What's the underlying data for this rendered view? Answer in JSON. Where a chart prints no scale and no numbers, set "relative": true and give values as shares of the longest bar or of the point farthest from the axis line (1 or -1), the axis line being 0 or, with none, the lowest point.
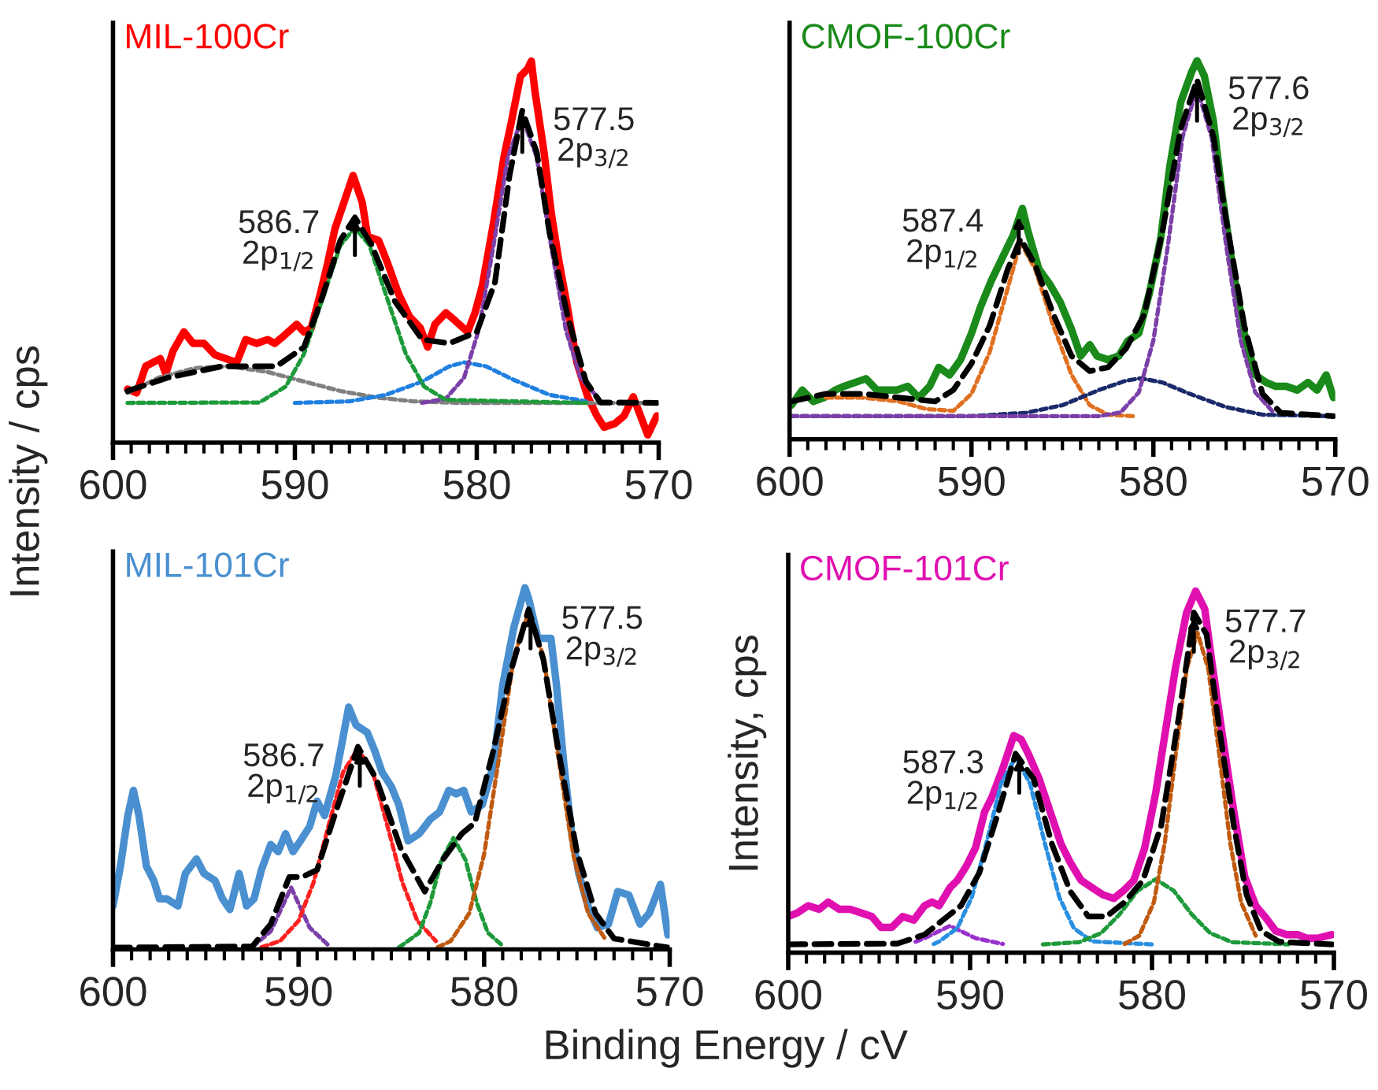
{
  "chart_data": [
    {
      "type": "line",
      "title": "MIL-100Cr",
      "ylabel": "Intensity / cps",
      "relative": true,
      "xlim": [
        600,
        570
      ],
      "xticks": [
        600,
        {
          "value": 599,
          "label": null
        },
        {
          "value": 598,
          "label": null
        },
        {
          "value": 597,
          "label": null
        },
        {
          "value": 596,
          "label": null
        },
        {
          "value": 595,
          "label": null
        },
        {
          "value": 594,
          "label": null
        },
        {
          "value": 593,
          "label": null
        },
        {
          "value": 592,
          "label": null
        },
        {
          "value": 591,
          "label": null
        },
        590,
        {
          "value": 589,
          "label": null
        },
        {
          "value": 588,
          "label": null
        },
        {
          "value": 587,
          "label": null
        },
        {
          "value": 586,
          "label": null
        },
        {
          "value": 585,
          "label": null
        },
        {
          "value": 584,
          "label": null
        },
        {
          "value": 583,
          "label": null
        },
        {
          "value": 582,
          "label": null
        },
        {
          "value": 581,
          "label": null
        },
        580,
        {
          "value": 579,
          "label": null
        },
        {
          "value": 578,
          "label": null
        },
        {
          "value": 577,
          "label": null
        },
        {
          "value": 576,
          "label": null
        },
        {
          "value": 575,
          "label": null
        },
        {
          "value": 574,
          "label": null
        },
        {
          "value": 573,
          "label": null
        },
        {
          "value": 572,
          "label": null
        },
        {
          "value": 571,
          "label": null
        },
        570
      ],
      "annotations": [
        {
          "text": "586.7\n2p$_{1/2}$",
          "x": 586.7,
          "y": 0.6
        },
        {
          "text": "577.5\n2p$_{3/2}$",
          "x": 577.5,
          "y": 0.87
        }
      ],
      "series": [
        {
          "color": "#ff0000",
          "line_style": "solid",
          "x": [
            599.2,
            598.7,
            598.2,
            597.4,
            597.1,
            596.7,
            596.1,
            595.6,
            595.0,
            594.4,
            593.8,
            593.2,
            592.7,
            592.1,
            591.5,
            591.1,
            590.6,
            589.9,
            589.5,
            589.1,
            588.6,
            588.2,
            587.8,
            587.3,
            586.8,
            586.3,
            586.0,
            585.4,
            584.9,
            584.3,
            583.7,
            583.1,
            582.7,
            582.3,
            581.7,
            581.2,
            580.5,
            580.1,
            579.7,
            579.1,
            578.5,
            578.1,
            577.6,
            577.2,
            577.0,
            576.8,
            576.3,
            575.9,
            575.5,
            575.0,
            574.5,
            573.9,
            573.4,
            573.0,
            572.4,
            571.9,
            571.4,
            571.0,
            570.6,
            570.1
          ],
          "values": [
            0.14,
            0.13,
            0.2,
            0.22,
            0.18,
            0.24,
            0.29,
            0.26,
            0.26,
            0.23,
            0.22,
            0.21,
            0.27,
            0.26,
            0.27,
            0.26,
            0.28,
            0.31,
            0.29,
            0.3,
            0.39,
            0.47,
            0.56,
            0.63,
            0.7,
            0.63,
            0.54,
            0.53,
            0.47,
            0.39,
            0.33,
            0.3,
            0.25,
            0.31,
            0.34,
            0.32,
            0.29,
            0.34,
            0.41,
            0.57,
            0.75,
            0.84,
            0.96,
            0.98,
            1.0,
            0.92,
            0.76,
            0.6,
            0.48,
            0.35,
            0.21,
            0.12,
            0.07,
            0.04,
            0.05,
            0.07,
            0.12,
            0.07,
            0.02,
            0.07
          ]
        },
        {
          "color": "#808080",
          "line_style": "dashed",
          "x": [
            599.2,
            597.5,
            595.5,
            593.7,
            591.5,
            589.5,
            587.5,
            585.5,
            583.5,
            581.0,
            570.1
          ],
          "values": [
            0.13,
            0.17,
            0.195,
            0.2,
            0.185,
            0.16,
            0.135,
            0.118,
            0.108,
            0.104,
            0.104
          ]
        },
        {
          "color": "#2080e0",
          "line_style": "dashed",
          "x": [
            590.0,
            587.0,
            585.0,
            583.0,
            581.5,
            580.7,
            579.5,
            578.0,
            576.0,
            574.0
          ],
          "values": [
            0.104,
            0.108,
            0.125,
            0.16,
            0.2,
            0.21,
            0.2,
            0.165,
            0.125,
            0.108
          ]
        },
        {
          "color": "#7b3fa8",
          "line_style": "dashed",
          "x": [
            583.0,
            581.7,
            580.7,
            579.9,
            579.1,
            578.3,
            577.5,
            576.7,
            575.9,
            575.1,
            574.3,
            573.3
          ],
          "values": [
            0.104,
            0.115,
            0.17,
            0.294,
            0.511,
            0.747,
            0.852,
            0.747,
            0.511,
            0.294,
            0.17,
            0.115
          ]
        },
        {
          "color": "#1e9a3a",
          "line_style": "dashed",
          "x": [
            599.2,
            592.0,
            591.7,
            590.5,
            589.5,
            588.5,
            587.5,
            586.7,
            585.9,
            584.9,
            583.9,
            582.9,
            581.7,
            574.0
          ],
          "values": [
            0.104,
            0.105,
            0.112,
            0.147,
            0.232,
            0.374,
            0.517,
            0.563,
            0.517,
            0.374,
            0.232,
            0.147,
            0.112,
            0.104
          ]
        },
        {
          "color": "#000000",
          "line_style": "dashed",
          "x": [
            599.2,
            597.0,
            594.0,
            591.0,
            589.5,
            588.5,
            587.5,
            586.7,
            585.8,
            584.5,
            583.0,
            581.5,
            580.0,
            579.0,
            578.2,
            577.5,
            576.7,
            576.0,
            575.0,
            574.0,
            573.2,
            570.1
          ],
          "values": [
            0.135,
            0.17,
            0.2,
            0.2,
            0.25,
            0.38,
            0.53,
            0.59,
            0.52,
            0.37,
            0.27,
            0.26,
            0.29,
            0.42,
            0.7,
            0.87,
            0.76,
            0.55,
            0.33,
            0.16,
            0.105,
            0.104
          ]
        }
      ]
    },
    {
      "type": "line",
      "title": "CMOF-100Cr",
      "relative": true,
      "xlim": [
        600,
        570
      ],
      "xticks": [
        600,
        {
          "value": 599,
          "label": null
        },
        {
          "value": 598,
          "label": null
        },
        {
          "value": 597,
          "label": null
        },
        {
          "value": 596,
          "label": null
        },
        {
          "value": 595,
          "label": null
        },
        {
          "value": 594,
          "label": null
        },
        {
          "value": 593,
          "label": null
        },
        {
          "value": 592,
          "label": null
        },
        {
          "value": 591,
          "label": null
        },
        590,
        {
          "value": 589,
          "label": null
        },
        {
          "value": 588,
          "label": null
        },
        {
          "value": 587,
          "label": null
        },
        {
          "value": 586,
          "label": null
        },
        {
          "value": 585,
          "label": null
        },
        {
          "value": 584,
          "label": null
        },
        {
          "value": 583,
          "label": null
        },
        {
          "value": 582,
          "label": null
        },
        {
          "value": 581,
          "label": null
        },
        580,
        {
          "value": 579,
          "label": null
        },
        {
          "value": 578,
          "label": null
        },
        {
          "value": 577,
          "label": null
        },
        {
          "value": 576,
          "label": null
        },
        {
          "value": 575,
          "label": null
        },
        {
          "value": 574,
          "label": null
        },
        {
          "value": 573,
          "label": null
        },
        {
          "value": 572,
          "label": null
        },
        {
          "value": 571,
          "label": null
        },
        570
      ],
      "annotations": [
        {
          "text": "587.4\n2p$_{1/2}$",
          "x": 587.4,
          "y": 0.6
        },
        {
          "text": "577.6\n2p$_{3/2}$",
          "x": 577.6,
          "y": 0.95
        }
      ],
      "series": [
        {
          "color": "#1a8a1a",
          "line_style": "solid",
          "x": [
            599.9,
            599.3,
            598.7,
            598.1,
            597.5,
            597.0,
            596.4,
            595.8,
            595.2,
            594.7,
            594.1,
            593.5,
            592.9,
            592.3,
            591.8,
            591.2,
            590.6,
            590.0,
            589.5,
            588.9,
            588.3,
            587.7,
            587.2,
            586.9,
            586.3,
            585.7,
            585.1,
            584.5,
            584.0,
            583.5,
            583.1,
            582.5,
            581.9,
            581.4,
            580.8,
            580.2,
            579.6,
            579.1,
            578.5,
            577.9,
            577.6,
            577.2,
            576.7,
            576.2,
            575.6,
            575.0,
            574.4,
            573.8,
            573.3,
            572.7,
            572.1,
            571.5,
            571.0,
            570.5,
            570.1
          ],
          "values": [
            0.09,
            0.13,
            0.1,
            0.11,
            0.13,
            0.14,
            0.15,
            0.16,
            0.13,
            0.13,
            0.13,
            0.14,
            0.11,
            0.14,
            0.19,
            0.17,
            0.21,
            0.28,
            0.35,
            0.42,
            0.48,
            0.54,
            0.61,
            0.55,
            0.45,
            0.41,
            0.36,
            0.29,
            0.22,
            0.25,
            0.22,
            0.21,
            0.22,
            0.26,
            0.28,
            0.39,
            0.53,
            0.72,
            0.89,
            0.97,
            1.0,
            0.96,
            0.84,
            0.64,
            0.44,
            0.28,
            0.17,
            0.15,
            0.14,
            0.14,
            0.13,
            0.15,
            0.13,
            0.17,
            0.11
          ]
        },
        {
          "color": "#e07020",
          "line_style": "dashed",
          "x": [
            598.0,
            596.0,
            594.0,
            592.5,
            591.0,
            590.0,
            589.0,
            588.0,
            587.3,
            586.5,
            585.5,
            584.5,
            583.5,
            582.5,
            581.0
          ],
          "values": [
            0.11,
            0.11,
            0.1,
            0.08,
            0.075,
            0.12,
            0.23,
            0.4,
            0.52,
            0.45,
            0.3,
            0.17,
            0.09,
            0.065,
            0.061
          ]
        },
        {
          "color": "#1a2a6a",
          "line_style": "dashed",
          "x": [
            599.9,
            590.0,
            587.0,
            585.0,
            583.0,
            581.5,
            580.7,
            579.5,
            578.0,
            576.0,
            574.0,
            570.1
          ],
          "values": [
            0.061,
            0.061,
            0.07,
            0.09,
            0.13,
            0.155,
            0.161,
            0.15,
            0.12,
            0.085,
            0.065,
            0.061
          ]
        },
        {
          "color": "#7b3fa8",
          "line_style": "dashed",
          "x": [
            599.9,
            583.0,
            581.8,
            580.8,
            580.0,
            579.2,
            578.4,
            577.6,
            576.8,
            576.0,
            575.2,
            574.4,
            573.4
          ],
          "values": [
            0.061,
            0.061,
            0.071,
            0.124,
            0.261,
            0.512,
            0.798,
            0.929,
            0.798,
            0.512,
            0.261,
            0.124,
            0.071
          ]
        },
        {
          "color": "#000000",
          "line_style": "dashed",
          "x": [
            599.9,
            598.0,
            596.0,
            594.0,
            592.0,
            591.0,
            590.0,
            589.0,
            588.0,
            587.3,
            586.5,
            585.5,
            584.5,
            583.5,
            582.5,
            581.5,
            580.5,
            579.5,
            578.5,
            577.6,
            576.7,
            576.0,
            575.0,
            574.0,
            573.0,
            570.1
          ],
          "values": [
            0.1,
            0.12,
            0.12,
            0.11,
            0.1,
            0.13,
            0.2,
            0.3,
            0.45,
            0.53,
            0.46,
            0.33,
            0.22,
            0.18,
            0.19,
            0.24,
            0.33,
            0.55,
            0.82,
            0.95,
            0.8,
            0.58,
            0.3,
            0.12,
            0.07,
            0.061
          ]
        }
      ]
    },
    {
      "type": "line",
      "title": "MIL-101Cr",
      "xlabel": "Binding Energy / cV",
      "relative": true,
      "xlim": [
        600,
        570
      ],
      "xticks": [
        600,
        {
          "value": 599,
          "label": null
        },
        {
          "value": 598,
          "label": null
        },
        {
          "value": 597,
          "label": null
        },
        {
          "value": 596,
          "label": null
        },
        {
          "value": 595,
          "label": null
        },
        {
          "value": 594,
          "label": null
        },
        {
          "value": 593,
          "label": null
        },
        {
          "value": 592,
          "label": null
        },
        {
          "value": 591,
          "label": null
        },
        590,
        {
          "value": 589,
          "label": null
        },
        {
          "value": 588,
          "label": null
        },
        {
          "value": 587,
          "label": null
        },
        {
          "value": 586,
          "label": null
        },
        {
          "value": 585,
          "label": null
        },
        {
          "value": 584,
          "label": null
        },
        {
          "value": 583,
          "label": null
        },
        {
          "value": 582,
          "label": null
        },
        {
          "value": 581,
          "label": null
        },
        580,
        {
          "value": 579,
          "label": null
        },
        {
          "value": 578,
          "label": null
        },
        {
          "value": 577,
          "label": null
        },
        {
          "value": 576,
          "label": null
        },
        {
          "value": 575,
          "label": null
        },
        {
          "value": 574,
          "label": null
        },
        {
          "value": 573,
          "label": null
        },
        {
          "value": 572,
          "label": null
        },
        {
          "value": 571,
          "label": null
        },
        570
      ],
      "annotations": [
        {
          "text": "586.7\n2p$_{1/2}$",
          "x": 586.7,
          "y": 0.56
        },
        {
          "text": "577.5\n2p$_{3/2}$",
          "x": 577.5,
          "y": 0.94
        }
      ],
      "series": [
        {
          "color": "#4a90d0",
          "line_style": "solid",
          "x": [
            600.0,
            599.6,
            599.2,
            598.9,
            598.6,
            598.2,
            597.8,
            597.5,
            597.1,
            596.5,
            596.1,
            595.5,
            595.1,
            594.5,
            594.1,
            593.7,
            593.2,
            592.8,
            592.4,
            592.0,
            591.5,
            591.1,
            590.7,
            590.3,
            589.9,
            589.4,
            589.0,
            588.6,
            588.0,
            587.7,
            587.3,
            586.9,
            586.3,
            585.9,
            585.5,
            585.0,
            584.6,
            584.3,
            584.1,
            583.5,
            582.9,
            582.4,
            581.9,
            581.5,
            581.1,
            580.7,
            580.1,
            579.5,
            579.0,
            578.4,
            577.8,
            577.6,
            577.1,
            576.4,
            576.1,
            575.7,
            575.3,
            574.9,
            574.4,
            573.9,
            573.3,
            572.8,
            572.2,
            571.6,
            571.1,
            570.5,
            570.1
          ],
          "values": [
            0.12,
            0.23,
            0.37,
            0.44,
            0.37,
            0.23,
            0.19,
            0.14,
            0.14,
            0.12,
            0.21,
            0.25,
            0.21,
            0.19,
            0.14,
            0.11,
            0.21,
            0.12,
            0.14,
            0.22,
            0.29,
            0.27,
            0.32,
            0.27,
            0.3,
            0.34,
            0.41,
            0.37,
            0.48,
            0.56,
            0.67,
            0.62,
            0.6,
            0.55,
            0.49,
            0.45,
            0.4,
            0.34,
            0.3,
            0.32,
            0.36,
            0.38,
            0.44,
            0.43,
            0.44,
            0.38,
            0.4,
            0.51,
            0.73,
            0.89,
            1.0,
            0.97,
            0.86,
            0.86,
            0.73,
            0.51,
            0.33,
            0.21,
            0.12,
            0.06,
            0.07,
            0.16,
            0.15,
            0.07,
            0.1,
            0.18,
            0.04
          ]
        },
        {
          "color": "#7b3fa8",
          "line_style": "dashed",
          "x": [
            592.5,
            591.5,
            590.4,
            589.4,
            588.3
          ],
          "values": [
            0.006,
            0.05,
            0.171,
            0.06,
            0.007
          ]
        },
        {
          "color": "#ff2020",
          "line_style": "dashed",
          "x": [
            592.0,
            591.0,
            590.0,
            589.2,
            588.4,
            587.6,
            586.8,
            586.0,
            585.2,
            584.4,
            583.6,
            582.6
          ],
          "values": [
            0.006,
            0.023,
            0.079,
            0.184,
            0.339,
            0.49,
            0.555,
            0.49,
            0.339,
            0.184,
            0.079,
            0.023
          ]
        },
        {
          "color": "#1e9a3a",
          "line_style": "dashed",
          "x": [
            584.6,
            583.5,
            582.9,
            582.3,
            581.65,
            581.0,
            580.4,
            579.8,
            579.0
          ],
          "values": [
            0.005,
            0.046,
            0.129,
            0.247,
            0.308,
            0.247,
            0.129,
            0.046,
            0.01
          ]
        },
        {
          "color": "#c05a10",
          "line_style": "dashed",
          "x": [
            582.5,
            581.8,
            580.8,
            580.0,
            579.2,
            578.4,
            577.6,
            576.8,
            576.0,
            575.2,
            574.4,
            573.4
          ],
          "values": [
            0.006,
            0.023,
            0.1,
            0.263,
            0.53,
            0.809,
            0.932,
            0.809,
            0.53,
            0.263,
            0.1,
            0.023
          ]
        },
        {
          "color": "#000000",
          "line_style": "dashed",
          "x": [
            600.0,
            592.5,
            591.5,
            590.5,
            589.8,
            589.0,
            588.0,
            586.8,
            585.8,
            584.5,
            583.2,
            582.2,
            581.2,
            580.5,
            579.5,
            578.5,
            577.6,
            576.8,
            576.0,
            575.0,
            574.0,
            573.0,
            570.1
          ],
          "values": [
            0.005,
            0.008,
            0.07,
            0.2,
            0.2,
            0.22,
            0.38,
            0.56,
            0.47,
            0.28,
            0.16,
            0.25,
            0.32,
            0.35,
            0.55,
            0.78,
            0.94,
            0.8,
            0.55,
            0.27,
            0.1,
            0.03,
            0.005
          ]
        }
      ]
    },
    {
      "type": "line",
      "title": "CMOF-101Cr",
      "ylabel": "Intensity, cps",
      "relative": true,
      "xlim": [
        600,
        570
      ],
      "xticks": [
        600,
        {
          "value": 599,
          "label": null
        },
        {
          "value": 598,
          "label": null
        },
        {
          "value": 597,
          "label": null
        },
        {
          "value": 596,
          "label": null
        },
        {
          "value": 595,
          "label": null
        },
        {
          "value": 594,
          "label": null
        },
        {
          "value": 593,
          "label": null
        },
        {
          "value": 592,
          "label": null
        },
        {
          "value": 591,
          "label": null
        },
        590,
        {
          "value": 589,
          "label": null
        },
        {
          "value": 588,
          "label": null
        },
        {
          "value": 587,
          "label": null
        },
        {
          "value": 586,
          "label": null
        },
        {
          "value": 585,
          "label": null
        },
        {
          "value": 584,
          "label": null
        },
        {
          "value": 583,
          "label": null
        },
        {
          "value": 582,
          "label": null
        },
        {
          "value": 581,
          "label": null
        },
        580,
        {
          "value": 579,
          "label": null
        },
        {
          "value": 578,
          "label": null
        },
        {
          "value": 577,
          "label": null
        },
        {
          "value": 576,
          "label": null
        },
        {
          "value": 575,
          "label": null
        },
        {
          "value": 574,
          "label": null
        },
        {
          "value": 573,
          "label": null
        },
        {
          "value": 572,
          "label": null
        },
        {
          "value": 571,
          "label": null
        },
        570
      ],
      "annotations": [
        {
          "text": "587.3\n2p$_{1/2}$",
          "x": 587.3,
          "y": 0.55
        },
        {
          "text": "577.7\n2p$_{3/2}$",
          "x": 577.7,
          "y": 0.94
        }
      ],
      "series": [
        {
          "color": "#e010b0",
          "line_style": "solid",
          "x": [
            600.0,
            599.5,
            598.9,
            598.3,
            597.8,
            597.2,
            596.6,
            596.0,
            595.4,
            594.9,
            594.3,
            593.7,
            593.1,
            592.5,
            592.1,
            591.7,
            591.1,
            590.7,
            590.2,
            589.7,
            589.2,
            588.8,
            588.2,
            587.6,
            587.2,
            586.8,
            586.2,
            585.6,
            585.0,
            584.5,
            583.9,
            583.3,
            582.7,
            582.1,
            581.6,
            581.0,
            580.4,
            579.8,
            579.3,
            578.7,
            578.1,
            577.6,
            577.1,
            576.7,
            576.1,
            575.5,
            574.9,
            574.3,
            573.8,
            573.2,
            572.6,
            572.0,
            571.5,
            570.9,
            570.1
          ],
          "values": [
            0.1,
            0.11,
            0.13,
            0.12,
            0.14,
            0.12,
            0.12,
            0.11,
            0.1,
            0.07,
            0.07,
            0.1,
            0.09,
            0.13,
            0.14,
            0.13,
            0.18,
            0.2,
            0.24,
            0.29,
            0.39,
            0.43,
            0.51,
            0.6,
            0.59,
            0.55,
            0.48,
            0.39,
            0.3,
            0.25,
            0.2,
            0.18,
            0.16,
            0.15,
            0.17,
            0.2,
            0.29,
            0.44,
            0.6,
            0.79,
            0.94,
            1.0,
            0.95,
            0.8,
            0.59,
            0.39,
            0.21,
            0.13,
            0.1,
            0.06,
            0.05,
            0.05,
            0.04,
            0.04,
            0.05
          ]
        },
        {
          "color": "#9932cc",
          "line_style": "dashed",
          "x": [
            593.0,
            592.5,
            591.1,
            589.7,
            588.2
          ],
          "values": [
            0.03,
            0.04,
            0.074,
            0.04,
            0.024
          ]
        },
        {
          "color": "#2a8fe0",
          "line_style": "dashed",
          "x": [
            592.0,
            591.7,
            590.7,
            589.9,
            589.1,
            588.3,
            587.5,
            586.7,
            585.9,
            585.1,
            584.3,
            583.3,
            580.0
          ],
          "values": [
            0.024,
            0.031,
            0.068,
            0.154,
            0.304,
            0.467,
            0.54,
            0.467,
            0.304,
            0.154,
            0.068,
            0.031,
            0.023
          ]
        },
        {
          "color": "#1e9a3a",
          "line_style": "dashed",
          "x": [
            586.0,
            584.0,
            582.8,
            581.8,
            580.8,
            579.8,
            578.8,
            577.8,
            576.8,
            575.6,
            572.5
          ],
          "values": [
            0.023,
            0.029,
            0.054,
            0.105,
            0.171,
            0.203,
            0.171,
            0.105,
            0.054,
            0.029,
            0.023
          ]
        },
        {
          "color": "#c05a10",
          "line_style": "dashed",
          "x": [
            581.5,
            580.7,
            579.9,
            579.3,
            578.7,
            578.1,
            577.5,
            576.9,
            576.3,
            575.7,
            575.1,
            574.3
          ],
          "values": [
            0.024,
            0.047,
            0.139,
            0.303,
            0.546,
            0.783,
            0.885,
            0.783,
            0.546,
            0.303,
            0.139,
            0.047
          ]
        },
        {
          "color": "#000000",
          "line_style": "dashed",
          "x": [
            600.0,
            594.0,
            592.5,
            591.5,
            590.5,
            589.5,
            588.5,
            587.5,
            586.5,
            585.5,
            584.5,
            583.5,
            582.5,
            581.5,
            580.5,
            579.5,
            578.5,
            577.7,
            577.0,
            576.3,
            575.5,
            574.8,
            574.0,
            573.0,
            570.1
          ],
          "values": [
            0.023,
            0.025,
            0.05,
            0.09,
            0.13,
            0.22,
            0.38,
            0.55,
            0.48,
            0.3,
            0.17,
            0.1,
            0.1,
            0.14,
            0.2,
            0.35,
            0.66,
            0.94,
            0.88,
            0.62,
            0.35,
            0.16,
            0.06,
            0.03,
            0.023
          ]
        }
      ]
    }
  ]
}
